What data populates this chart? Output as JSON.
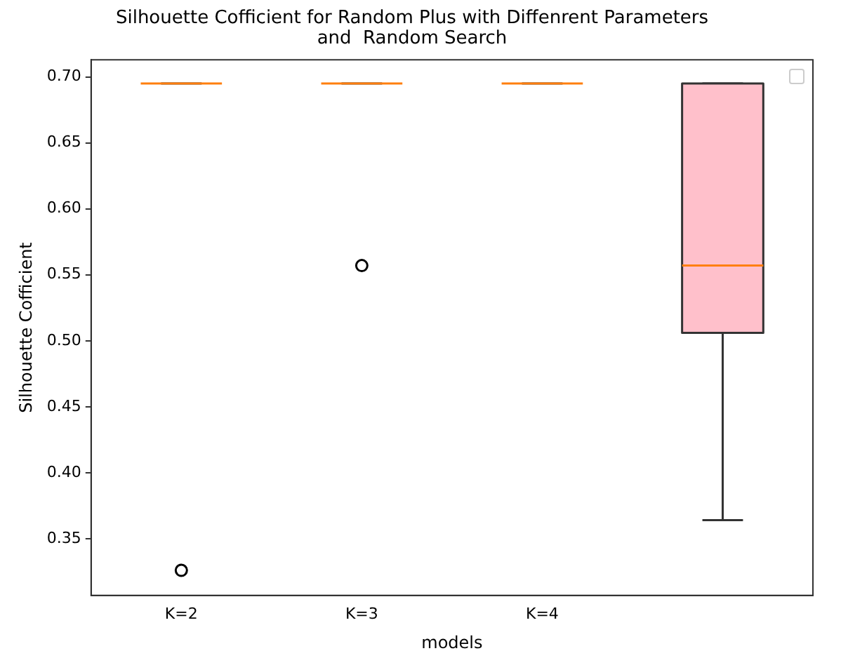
{
  "chart_data": {
    "type": "box",
    "title": "Silhouette Cofficient for Random Plus with Diffenrent Parameters\nand  Random Search",
    "xlabel": "models",
    "ylabel": "Silhouette Cofficient",
    "categories": [
      "K=2",
      "K=3",
      "K=4",
      null
    ],
    "colors": [
      "#ff7f0e",
      "#ff7f0e",
      "#ff7f0e",
      "#ffc0cb"
    ],
    "boxes": [
      {
        "low": 0.695,
        "q1": 0.695,
        "median": 0.695,
        "q3": 0.695,
        "high": 0.695,
        "outliers": [
          0.326
        ]
      },
      {
        "low": 0.695,
        "q1": 0.695,
        "median": 0.695,
        "q3": 0.695,
        "high": 0.695,
        "outliers": [
          0.557
        ]
      },
      {
        "low": 0.695,
        "q1": 0.695,
        "median": 0.695,
        "q3": 0.695,
        "high": 0.695
      },
      {
        "low": 0.364,
        "q1": 0.506,
        "median": 0.557,
        "q3": 0.695,
        "high": 0.695
      }
    ],
    "ylim": [
      0.307,
      0.713
    ],
    "yticks": [
      0.35,
      {
        "value": 0.4,
        "label": "0.40"
      },
      0.45,
      {
        "value": 0.5,
        "label": "0.50"
      },
      0.55,
      {
        "value": 0.6,
        "label": "0.60"
      },
      0.65,
      {
        "value": 0.7,
        "label": "0.70"
      }
    ],
    "grid": false
  }
}
